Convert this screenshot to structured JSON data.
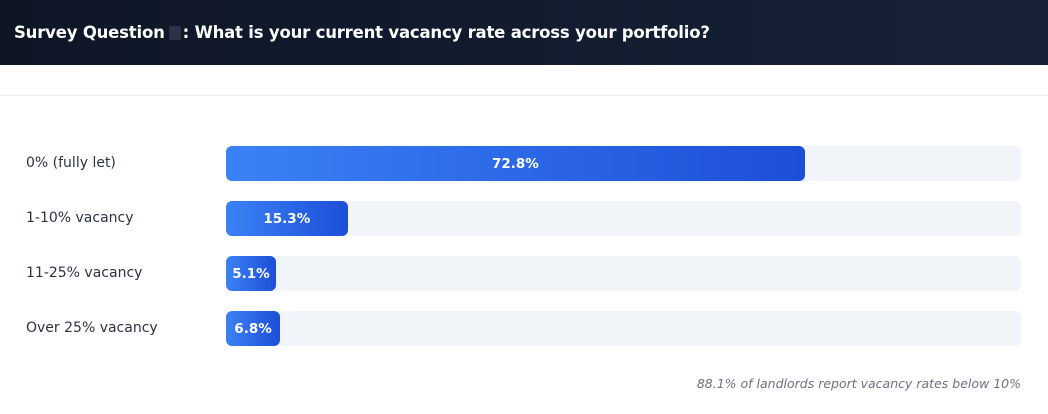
{
  "header": {
    "title_prefix": "Survey Question",
    "title_question": ": What is your current vacancy rate across your portfolio?"
  },
  "chart_data": {
    "type": "bar",
    "orientation": "horizontal",
    "categories": [
      "0% (fully let)",
      "1-10% vacancy",
      "11-25% vacancy",
      "Over 25% vacancy"
    ],
    "values": [
      72.8,
      15.3,
      5.1,
      6.8
    ],
    "value_labels": [
      "72.8%",
      "15.3%",
      "5.1%",
      "6.8%"
    ],
    "xlim": [
      0,
      100
    ],
    "bar_color_start": "#3b82f6",
    "bar_color_end": "#1d4ed8",
    "track_color": "#f1f4f8"
  },
  "footnote": "88.1% of landlords report vacancy rates below 10%"
}
